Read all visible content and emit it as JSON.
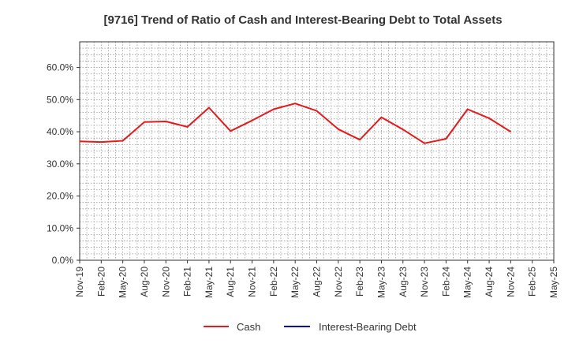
{
  "chart_data": {
    "type": "line",
    "title": "[9716]  Trend of Ratio of Cash and Interest-Bearing Debt to Total Assets",
    "xlabel": "",
    "ylabel": "",
    "categories": [
      "Nov-19",
      "Feb-20",
      "May-20",
      "Aug-20",
      "Nov-20",
      "Feb-21",
      "May-21",
      "Aug-21",
      "Nov-21",
      "Feb-22",
      "May-22",
      "Aug-22",
      "Nov-22",
      "Feb-23",
      "May-23",
      "Aug-23",
      "Nov-23",
      "Feb-24",
      "May-24",
      "Aug-24",
      "Nov-24",
      "Feb-25",
      "May-25"
    ],
    "y_ticks": [
      "0.0%",
      "10.0%",
      "20.0%",
      "30.0%",
      "40.0%",
      "50.0%",
      "60.0%"
    ],
    "ylim": [
      0,
      68
    ],
    "grid": true,
    "legend_position": "bottom",
    "series": [
      {
        "name": "Cash",
        "color": "#e41a1c",
        "values": [
          37.0,
          36.8,
          37.2,
          43.0,
          43.2,
          41.5,
          47.5,
          40.2,
          43.5,
          47.0,
          48.8,
          46.5,
          40.8,
          37.5,
          44.5,
          40.7,
          36.4,
          37.8,
          47.0,
          44.2,
          40.0,
          null,
          null
        ]
      },
      {
        "name": "Interest-Bearing Debt",
        "color": "#0000cd",
        "values": [
          null,
          null,
          null,
          null,
          null,
          null,
          null,
          null,
          null,
          null,
          null,
          null,
          null,
          null,
          null,
          null,
          null,
          null,
          null,
          null,
          null,
          null,
          null
        ]
      }
    ]
  }
}
